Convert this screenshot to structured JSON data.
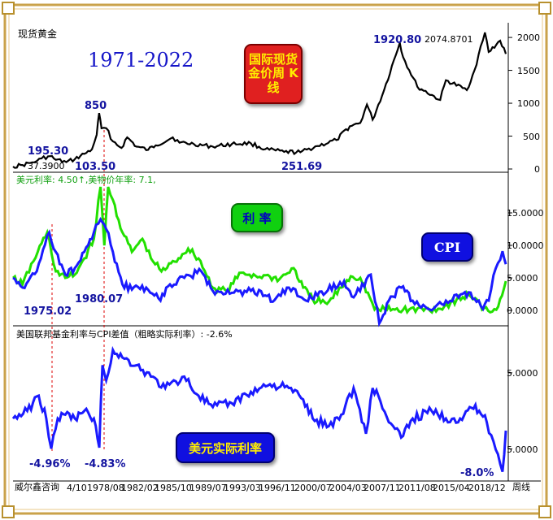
{
  "header": {
    "instrument": "现货黄金",
    "period": "1971-2022",
    "badge_title": "国际现货金价周 K线"
  },
  "panels": {
    "gold": {
      "peak_labels": {
        "p1975": "195.30",
        "low1970s": "37.3900",
        "p1980": "850",
        "low1976": "103.50",
        "low1999": "251.69",
        "p2011": "1920.80",
        "p2020": "2074.8701"
      }
    },
    "rates": {
      "legend": "美元利率: 4.50↑,美物价年率: 7.1,",
      "badge_rate": "利 率",
      "badge_cpi": "CPI",
      "date_a": "1975.02",
      "date_b": "1980.07"
    },
    "real": {
      "title": "美国联邦基金利率与CPI差值（粗略实际利率）: -2.6%",
      "badge": "美元实际利率",
      "low1": "-4.96%",
      "low2": "-4.83%",
      "low3": "-8.0%"
    }
  },
  "footer": {
    "watermark": "威尔鑫咨询",
    "cycle": "周线",
    "ticks": [
      "4/10",
      "1978/08",
      "1982/02",
      "1985/10",
      "1989/07",
      "1993/03",
      "1996/11",
      "2000/07",
      "2004/03",
      "2007/11",
      "2011/08",
      "2015/04",
      "2018/12"
    ]
  },
  "colors": {
    "gold_line": "#000000",
    "cpi_line": "#1a1aff",
    "rate_line": "#22e000",
    "badge_red": "#e02020",
    "badge_green": "#10d010",
    "badge_blue": "#1010e0"
  },
  "chart_data": [
    {
      "type": "line",
      "title": "现货黄金",
      "x_range": [
        1971,
        2022.8
      ],
      "ylim": [
        0,
        2100
      ],
      "y_ticks": [
        0,
        500,
        1000,
        1500,
        2000
      ],
      "series": [
        {
          "x": [
            1971,
            1972,
            1973,
            1973.5,
            1974,
            1974.9,
            1975.5,
            1976.6,
            1977.5,
            1978.5,
            1979.3,
            1979.8,
            1980.05,
            1980.3,
            1980.8,
            1981.5,
            1982.4,
            1983,
            1984,
            1985.2,
            1986,
            1987.8,
            1988.5,
            1990,
            1992,
            1994,
            1996,
            1997.5,
            1999.5,
            2001.2,
            2003,
            2005,
            2006.4,
            2007.5,
            2008.2,
            2008.8,
            2010,
            2011.65,
            2012,
            2013.5,
            2015.9,
            2016.5,
            2018.7,
            2019.5,
            2020.6,
            2021,
            2022.2,
            2022.8
          ],
          "values": [
            37.39,
            60,
            100,
            120,
            160,
            195.3,
            140,
            103.5,
            150,
            230,
            300,
            520,
            850,
            620,
            620,
            420,
            320,
            480,
            340,
            290,
            360,
            480,
            400,
            380,
            340,
            380,
            390,
            300,
            260,
            255,
            350,
            440,
            650,
            700,
            980,
            750,
            1200,
            1920.8,
            1700,
            1250,
            1050,
            1350,
            1200,
            1500,
            2074.87,
            1780,
            1950,
            1750
          ]
        }
      ]
    },
    {
      "type": "line",
      "title": "美元利率: 4.50↑,美物价年率: 7.1,",
      "x_range": [
        1971,
        2022.8
      ],
      "ylim": [
        -2,
        20
      ],
      "y_ticks": [
        0,
        5,
        10,
        15
      ],
      "series": [
        {
          "name": "利 率",
          "x": [
            1971,
            1972,
            1973.6,
            1974.6,
            1975.5,
            1976.5,
            1977.5,
            1978.5,
            1979.5,
            1980.2,
            1980.6,
            1981,
            1981.5,
            1982.5,
            1983.5,
            1984.6,
            1985.5,
            1986.6,
            1988,
            1989.4,
            1990.5,
            1992,
            1993.5,
            1995,
            1996.5,
            1998,
            1999,
            2000.5,
            2001.5,
            2002.5,
            2004,
            2005.5,
            2006.5,
            2007.5,
            2008.5,
            2009,
            2012,
            2015.9,
            2017,
            2018.9,
            2019.8,
            2020.3,
            2021.8,
            2022.8
          ],
          "values": [
            5,
            4,
            9,
            12,
            6,
            5,
            5.5,
            8,
            11,
            19,
            10,
            19,
            17,
            12,
            9,
            11,
            8,
            6,
            7.5,
            9.5,
            8,
            3.5,
            3,
            5.8,
            5.3,
            5.2,
            4.8,
            6.5,
            3.5,
            1.7,
            1,
            3.5,
            5.25,
            5,
            2,
            0.15,
            0.1,
            0.25,
            1.2,
            2.4,
            1.6,
            0.1,
            0.1,
            4.5
          ]
        },
        {
          "name": "CPI",
          "x": [
            1971,
            1972,
            1973.5,
            1974.8,
            1975.5,
            1976.5,
            1977.5,
            1978.5,
            1979.5,
            1980.2,
            1980.8,
            1981.5,
            1982.5,
            1983.5,
            1985,
            1986.5,
            1987.5,
            1989,
            1990.8,
            1992,
            1994,
            1996,
            1997.5,
            1998.5,
            2000,
            2001.8,
            2003,
            2005.8,
            2006.8,
            2008.6,
            2009.5,
            2010.5,
            2011.8,
            2013,
            2015,
            2016.5,
            2018.5,
            2019.5,
            2020.4,
            2021,
            2021.5,
            2022.45,
            2022.8
          ],
          "values": [
            5,
            3.5,
            6,
            12,
            9,
            5.5,
            6.5,
            9,
            12,
            14,
            12.5,
            9,
            4,
            3.2,
            3.5,
            1.5,
            4,
            5,
            6,
            3,
            2.7,
            3,
            2.3,
            1.6,
            3.5,
            1.5,
            2.3,
            4.5,
            2,
            5.5,
            -2,
            1.5,
            3.5,
            1.5,
            0,
            1.5,
            2.8,
            1.8,
            0.2,
            1.5,
            5.4,
            9.1,
            7.1
          ]
        }
      ]
    },
    {
      "type": "line",
      "title": "美国联邦基金利率与CPI差值（粗略实际利率）: -2.6%",
      "x_range": [
        1971,
        2022.8
      ],
      "ylim": [
        -9,
        10
      ],
      "y_ticks": [
        5,
        -5
      ],
      "series": [
        {
          "name": "美元实际利率",
          "x": [
            1971,
            1972.5,
            1973.7,
            1974.5,
            1975.02,
            1975.7,
            1976.5,
            1977.5,
            1978.5,
            1979.5,
            1980.07,
            1980.4,
            1980.8,
            1981.5,
            1982.5,
            1984,
            1985.5,
            1987,
            1989,
            1990.5,
            1992,
            1994,
            1996,
            1998,
            2000,
            2001.5,
            2002.5,
            2004.2,
            2005.5,
            2006.8,
            2008.1,
            2008.8,
            2009.4,
            2010.5,
            2011.8,
            2013,
            2015,
            2016.5,
            2018,
            2019,
            2020,
            2020.8,
            2021.5,
            2022.45,
            2022.8
          ],
          "values": [
            -1,
            0,
            2,
            -1,
            -4.96,
            -1,
            -0.5,
            -1,
            0,
            -1,
            -4.83,
            6,
            4,
            8,
            7,
            6,
            4.5,
            3,
            4.5,
            2,
            0.5,
            1,
            2.5,
            3.5,
            3,
            1.5,
            -1,
            -2,
            -0.5,
            3,
            -3,
            3,
            2,
            -1.5,
            -3.5,
            -1,
            0,
            -1,
            -1,
            0.5,
            0,
            -1.5,
            -4,
            -8,
            -2.6
          ]
        }
      ]
    }
  ]
}
